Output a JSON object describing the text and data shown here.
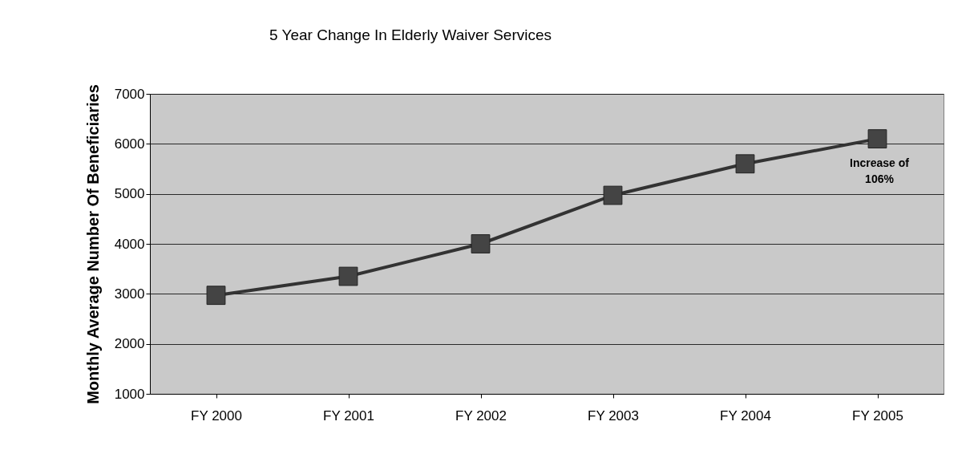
{
  "chart_data": {
    "type": "line",
    "title": "5 Year Change In Elderly Waiver Services",
    "ylabel": "Monthly Average Number Of Beneficiaries",
    "categories": [
      "FY 2000",
      "FY 2001",
      "FY 2002",
      "FY 2003",
      "FY 2004",
      "FY 2005"
    ],
    "series": [
      {
        "color": "#333333",
        "values": [
          2970,
          3350,
          4000,
          4970,
          5600,
          6100
        ]
      }
    ],
    "ylim": [
      1000,
      7000
    ],
    "yticks": [
      1000,
      2000,
      3000,
      4000,
      5000,
      6000,
      7000
    ],
    "grid": "y",
    "marker": "square",
    "line_style": "solid",
    "annotations": [
      "Increase of\n106%"
    ]
  }
}
